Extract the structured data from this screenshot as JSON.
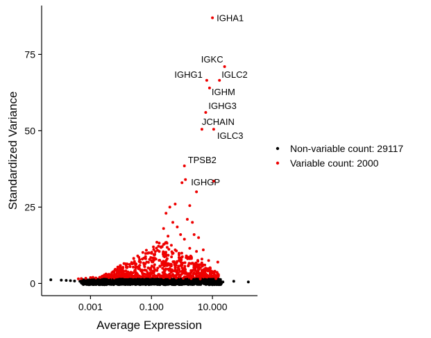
{
  "chart_data": {
    "type": "scatter",
    "title": "",
    "xlabel": "Average Expression",
    "ylabel": "Standardized Variance",
    "x_scale": "log10",
    "xlim": [
      2.5e-05,
      300
    ],
    "ylim": [
      -4,
      91
    ],
    "x_ticks": [
      0.001,
      0.1,
      10
    ],
    "x_tick_labels": [
      "0.001",
      "0.100",
      "10.000"
    ],
    "y_ticks": [
      0,
      25,
      50,
      75
    ],
    "y_tick_labels": [
      "0",
      "25",
      "50",
      "75"
    ],
    "grid": false,
    "legend_position": "right",
    "series": [
      {
        "name": "Non-variable count: 29117",
        "color": "#000000",
        "points": [
          [
            5e-05,
            1.2
          ],
          [
            0.00011,
            1.1
          ],
          [
            0.00016,
            1.0
          ],
          [
            0.00022,
            0.9
          ],
          [
            0.0003,
            0.8
          ],
          [
            0.00045,
            0.7
          ],
          [
            0.0006,
            0.6
          ],
          [
            0.0008,
            0.9
          ],
          [
            0.0011,
            0.5
          ],
          [
            0.0015,
            0.8
          ],
          [
            0.002,
            0.4
          ],
          [
            0.003,
            0.7
          ],
          [
            0.004,
            0.3
          ],
          [
            0.006,
            0.6
          ],
          [
            0.008,
            0.2
          ],
          [
            0.011,
            0.5
          ],
          [
            0.015,
            0.3
          ],
          [
            0.02,
            0.6
          ],
          [
            0.03,
            0.2
          ],
          [
            0.04,
            0.5
          ],
          [
            0.06,
            0.3
          ],
          [
            0.08,
            0.6
          ],
          [
            0.11,
            0.2
          ],
          [
            0.15,
            0.4
          ],
          [
            0.2,
            0.3
          ],
          [
            0.3,
            0.5
          ],
          [
            0.4,
            0.2
          ],
          [
            0.6,
            0.4
          ],
          [
            0.8,
            0.3
          ],
          [
            1.1,
            0.5
          ],
          [
            1.5,
            0.3
          ],
          [
            2.0,
            0.6
          ],
          [
            3.0,
            0.4
          ],
          [
            4.0,
            0.7
          ],
          [
            6.0,
            0.3
          ],
          [
            8.0,
            0.5
          ],
          [
            11.0,
            0.4
          ],
          [
            15.0,
            0.6
          ],
          [
            22.0,
            0.5
          ],
          [
            50.0,
            0.7
          ],
          [
            150.0,
            0.5
          ]
        ]
      },
      {
        "name": "Variable count: 2000",
        "color": "#ee0000",
        "points": [
          [
            10.0,
            87.0
          ],
          [
            25.0,
            71.0
          ],
          [
            6.5,
            66.5
          ],
          [
            17.0,
            66.5
          ],
          [
            8.0,
            64.0
          ],
          [
            6.0,
            56.0
          ],
          [
            4.5,
            50.5
          ],
          [
            11.0,
            50.5
          ],
          [
            1.2,
            38.5
          ],
          [
            11.0,
            33.5
          ],
          [
            1.0,
            33.0
          ],
          [
            1.3,
            34.0
          ],
          [
            3.0,
            30.0
          ],
          [
            0.6,
            26.0
          ],
          [
            0.4,
            25.0
          ],
          [
            1.8,
            25.5
          ],
          [
            0.3,
            23.0
          ],
          [
            0.5,
            20.0
          ],
          [
            0.25,
            18.0
          ],
          [
            0.7,
            18.5
          ],
          [
            1.5,
            21.0
          ],
          [
            2.2,
            20.0
          ],
          [
            0.35,
            15.5
          ],
          [
            0.9,
            16.0
          ],
          [
            1.2,
            14.5
          ],
          [
            2.5,
            16.0
          ],
          [
            3.5,
            15.0
          ],
          [
            0.15,
            13.5
          ],
          [
            0.2,
            12.0
          ],
          [
            0.45,
            12.5
          ],
          [
            0.6,
            11.0
          ],
          [
            1.8,
            11.5
          ],
          [
            3.0,
            10.5
          ],
          [
            5.0,
            11.0
          ],
          [
            0.08,
            10.0
          ],
          [
            0.12,
            9.5
          ],
          [
            0.18,
            10.5
          ],
          [
            0.3,
            9.0
          ],
          [
            0.8,
            8.5
          ],
          [
            1.4,
            9.0
          ],
          [
            4.5,
            8.0
          ],
          [
            7.5,
            7.5
          ],
          [
            0.05,
            8.0
          ],
          [
            0.07,
            7.0
          ],
          [
            0.1,
            7.5
          ],
          [
            0.14,
            8.0
          ],
          [
            0.22,
            7.0
          ],
          [
            0.35,
            6.5
          ],
          [
            0.55,
            7.0
          ],
          [
            1.0,
            6.0
          ],
          [
            2.0,
            6.5
          ],
          [
            3.2,
            5.5
          ],
          [
            6.0,
            5.0
          ],
          [
            0.02,
            5.5
          ],
          [
            0.03,
            6.0
          ],
          [
            0.04,
            5.0
          ],
          [
            0.06,
            5.5
          ],
          [
            0.09,
            4.5
          ],
          [
            0.16,
            5.0
          ],
          [
            0.26,
            4.5
          ],
          [
            0.45,
            4.5
          ],
          [
            0.7,
            4.0
          ],
          [
            1.2,
            4.5
          ],
          [
            2.5,
            3.5
          ],
          [
            5.0,
            3.5
          ],
          [
            8.5,
            3.0
          ],
          [
            12.0,
            4.0
          ],
          [
            15.0,
            7.0
          ],
          [
            0.008,
            3.5
          ],
          [
            0.012,
            4.0
          ],
          [
            0.016,
            3.0
          ],
          [
            0.025,
            3.5
          ],
          [
            0.035,
            3.0
          ],
          [
            0.05,
            3.5
          ],
          [
            0.075,
            3.0
          ],
          [
            0.11,
            3.5
          ],
          [
            0.17,
            3.0
          ],
          [
            0.3,
            2.8
          ],
          [
            0.5,
            3.0
          ],
          [
            0.9,
            2.8
          ],
          [
            1.6,
            2.6
          ],
          [
            3.0,
            2.5
          ],
          [
            6.0,
            2.2
          ],
          [
            10.0,
            2.4
          ],
          [
            0.003,
            2.5
          ],
          [
            0.005,
            2.8
          ],
          [
            0.007,
            2.2
          ],
          [
            0.01,
            2.4
          ],
          [
            0.014,
            2.2
          ],
          [
            0.02,
            2.6
          ],
          [
            0.028,
            2.2
          ],
          [
            0.04,
            2.4
          ],
          [
            0.06,
            2.2
          ],
          [
            0.09,
            2.5
          ],
          [
            0.13,
            2.2
          ],
          [
            0.2,
            2.4
          ],
          [
            0.002,
            2.0
          ],
          [
            0.0015,
            1.8
          ],
          [
            0.0012,
            2.0
          ],
          [
            0.001,
            1.9
          ],
          [
            0.0007,
            1.7
          ],
          [
            0.0005,
            1.6
          ],
          [
            0.0004,
            1.5
          ],
          [
            0.004,
            1.9
          ],
          [
            0.006,
            1.8
          ],
          [
            0.25,
            1.9
          ],
          [
            0.4,
            1.8
          ],
          [
            0.65,
            1.8
          ],
          [
            1.1,
            1.7
          ],
          [
            2.0,
            1.6
          ],
          [
            4.0,
            1.5
          ],
          [
            13.0,
            1.6
          ]
        ]
      }
    ],
    "annotations": [
      {
        "text": "IGHA1",
        "x": 10.0,
        "y": 87.0
      },
      {
        "text": "IGKC",
        "x": 25.0,
        "y": 71.0
      },
      {
        "text": "IGHG1",
        "x": 6.5,
        "y": 66.5
      },
      {
        "text": "IGLC2",
        "x": 17.0,
        "y": 66.5
      },
      {
        "text": "IGHM",
        "x": 8.0,
        "y": 64.0
      },
      {
        "text": "IGHG3",
        "x": 6.0,
        "y": 56.0
      },
      {
        "text": "JCHAIN",
        "x": 4.5,
        "y": 50.5
      },
      {
        "text": "IGLC3",
        "x": 11.0,
        "y": 50.5
      },
      {
        "text": "TPSB2",
        "x": 1.2,
        "y": 38.5
      },
      {
        "text": "IGHGP",
        "x": 1.0,
        "y": 33.0
      }
    ]
  }
}
